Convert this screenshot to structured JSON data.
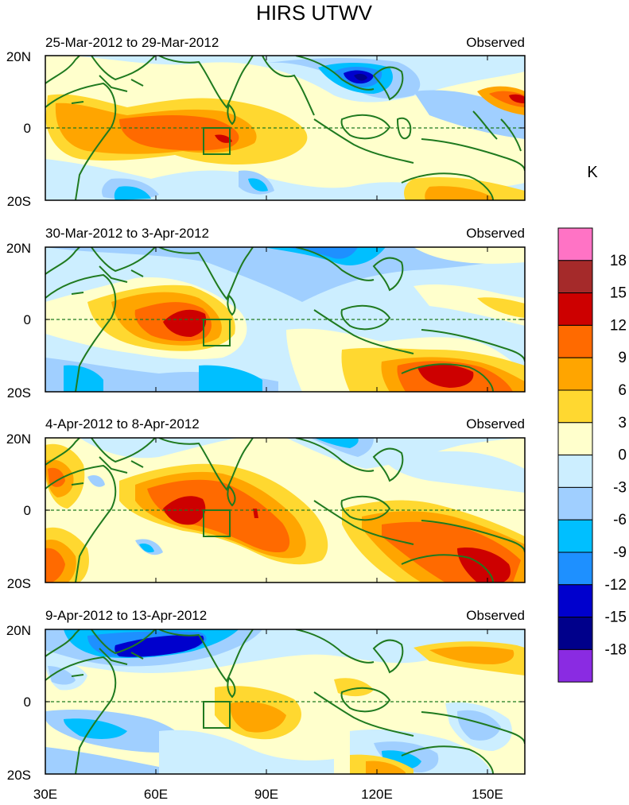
{
  "figure": {
    "title": "HIRS UTWV",
    "colorbar_unit": "K",
    "colorbar_labels": [
      "18",
      "15",
      "12",
      "9",
      "6",
      "3",
      "0",
      "-3",
      "-6",
      "-9",
      "-12",
      "-15",
      "-18"
    ],
    "colorbar_colors": [
      "#ff73c5",
      "#a52a2a",
      "#cd0000",
      "#ff6a00",
      "#ffa500",
      "#ffd830",
      "#ffffcc",
      "#cceeff",
      "#a0cfff",
      "#00bfff",
      "#1e90ff",
      "#0000cd",
      "#00008b",
      "#8a2be2"
    ],
    "x_ticks": [
      "30E",
      "60E",
      "90E",
      "120E",
      "150E"
    ],
    "y_ticks": [
      "20N",
      "0",
      "20S"
    ]
  },
  "panels": [
    {
      "date_label": "25-Mar-2012 to 29-Mar-2012",
      "type_label": "Observed"
    },
    {
      "date_label": "30-Mar-2012 to 3-Apr-2012",
      "type_label": "Observed"
    },
    {
      "date_label": "4-Apr-2012 to 8-Apr-2012",
      "type_label": "Observed"
    },
    {
      "date_label": "9-Apr-2012 to 13-Apr-2012",
      "type_label": "Observed"
    }
  ],
  "map_data": {
    "projection": "cylindrical equidistant",
    "lon_range": [
      30,
      160
    ],
    "lat_range": [
      -20,
      20
    ],
    "field": "upper tropospheric water vapour anomaly",
    "contour_levels": [
      -18,
      -15,
      -12,
      -9,
      -6,
      -3,
      0,
      3,
      6,
      9,
      12,
      15,
      18
    ],
    "box_region": {
      "lon": [
        72,
        80
      ],
      "lat": [
        -8,
        0
      ]
    },
    "equator_line": "dashed",
    "coastline_color": "#1f7a1f"
  }
}
